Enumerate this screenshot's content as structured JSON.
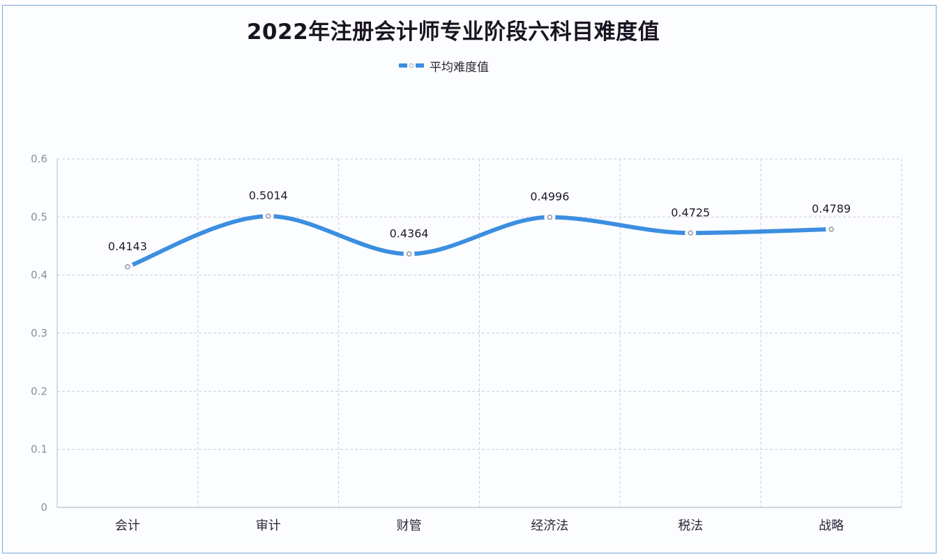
{
  "chart_data": {
    "type": "line",
    "title": "2022年注册会计师专业阶段六科目难度值",
    "categories": [
      "会计",
      "审计",
      "财管",
      "经济法",
      "税法",
      "战略"
    ],
    "series": [
      {
        "name": "平均难度值",
        "values": [
          0.4143,
          0.5014,
          0.4364,
          0.4996,
          0.4725,
          0.4789
        ],
        "color": "#3b8ee0",
        "smooth": true
      }
    ],
    "xlabel": "",
    "ylabel": "",
    "ylim": [
      0,
      0.6
    ],
    "yticks": [
      "0",
      "0.1",
      "0.2",
      "0.3",
      "0.4",
      "0.5",
      "0.6"
    ],
    "data_labels": [
      "0.4143",
      "0.5014",
      "0.4364",
      "0.4996",
      "0.4725",
      "0.4789"
    ],
    "grid": true,
    "legend_position": "top-center"
  },
  "legend": {
    "label": "平均难度值"
  },
  "colors": {
    "line": "#3b8ee0",
    "frame": "#7aa6d6",
    "grid": "#c9ccd2"
  }
}
